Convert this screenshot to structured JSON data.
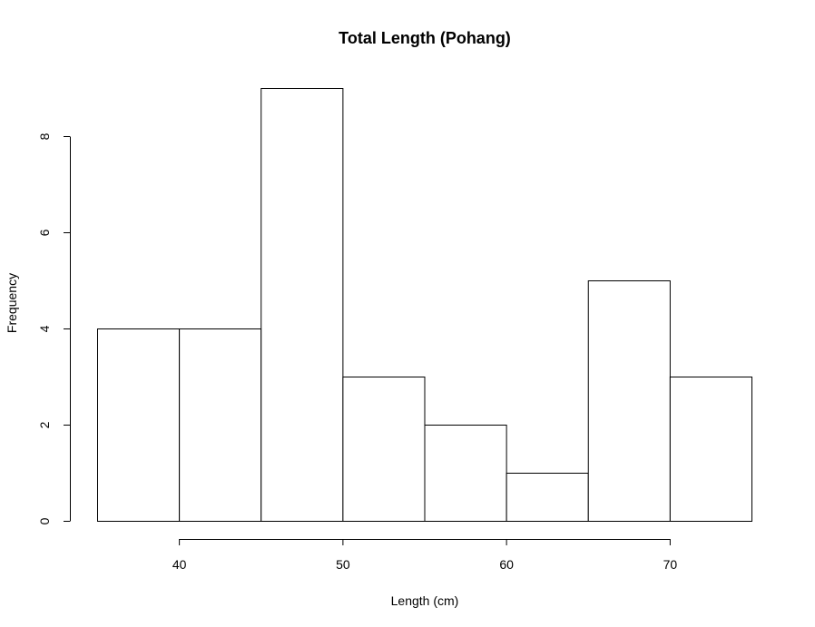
{
  "chart_data": {
    "type": "bar",
    "title": "Total Length (Pohang)",
    "xlabel": "Length (cm)",
    "ylabel": "Frequency",
    "bins": [
      {
        "start": 35,
        "end": 40,
        "count": 4
      },
      {
        "start": 40,
        "end": 45,
        "count": 4
      },
      {
        "start": 45,
        "end": 50,
        "count": 9
      },
      {
        "start": 50,
        "end": 55,
        "count": 3
      },
      {
        "start": 55,
        "end": 60,
        "count": 2
      },
      {
        "start": 60,
        "end": 65,
        "count": 1
      },
      {
        "start": 65,
        "end": 70,
        "count": 5
      },
      {
        "start": 70,
        "end": 75,
        "count": 3
      }
    ],
    "xticks": [
      "40",
      "50",
      "60",
      "70"
    ],
    "yticks": [
      "0",
      "2",
      "4",
      "6",
      "8"
    ],
    "xlim": [
      35,
      75
    ],
    "ylim": [
      0,
      9
    ],
    "grid": false,
    "legend": "none",
    "bar_fill": "#ffffff",
    "bar_stroke": "#000000"
  }
}
